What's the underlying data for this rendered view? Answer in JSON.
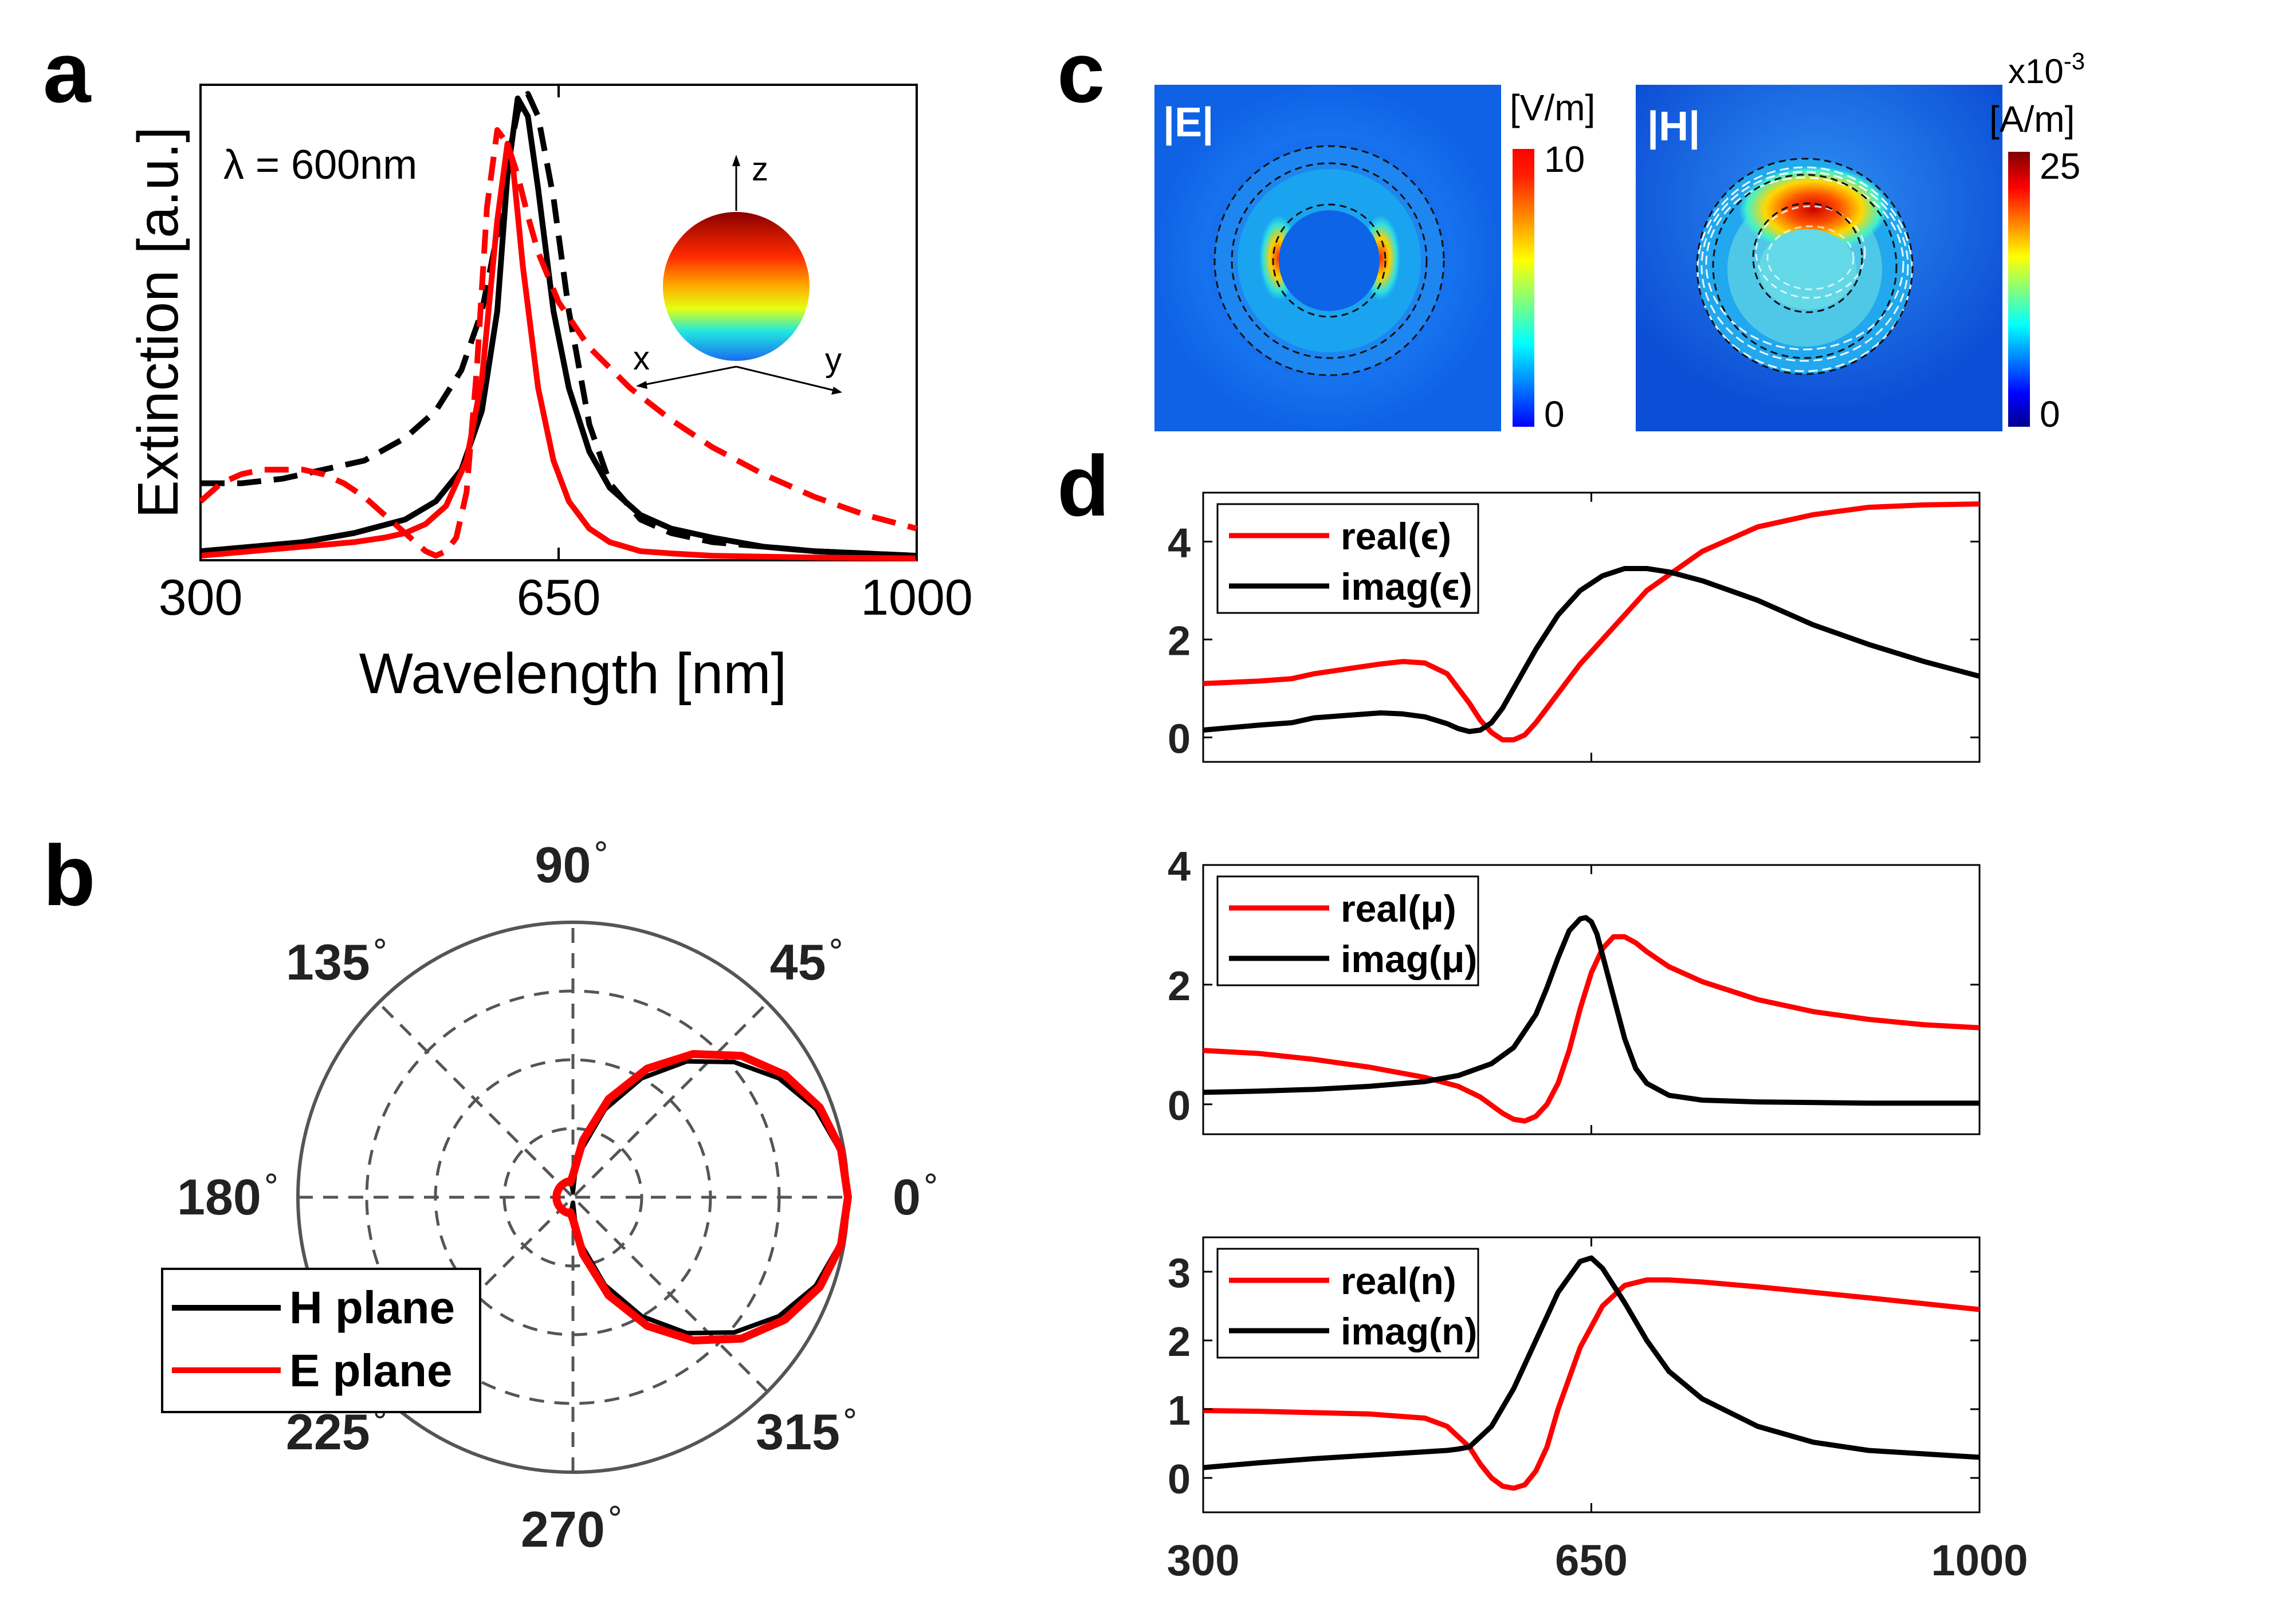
{
  "panel_labels": [
    "a",
    "b",
    "c",
    "d"
  ],
  "colors": {
    "red": "#ff0000",
    "black": "#000000",
    "gray": "#555555"
  },
  "chart_data": [
    {
      "id": "a",
      "type": "line",
      "xlabel": "Wavelength [nm]",
      "ylabel": "Extinction [a.u.]",
      "xlim": [
        300,
        1000
      ],
      "ylim": [
        0,
        1.05
      ],
      "xticks": [
        "300",
        "650",
        "1000"
      ],
      "annotation": "λ = 600nm",
      "inset_axes": [
        "z",
        "x",
        "y"
      ],
      "series": [
        {
          "color": "#000000",
          "dash": "dashed",
          "x": [
            300,
            340,
            380,
            420,
            460,
            500,
            530,
            555,
            575,
            590,
            600,
            610,
            620,
            630,
            645,
            660,
            680,
            700,
            730,
            760,
            800,
            850,
            900,
            950,
            1000
          ],
          "y": [
            0.17,
            0.17,
            0.18,
            0.2,
            0.22,
            0.27,
            0.33,
            0.42,
            0.55,
            0.72,
            0.88,
            0.99,
            1.03,
            0.98,
            0.8,
            0.55,
            0.3,
            0.17,
            0.09,
            0.06,
            0.04,
            0.03,
            0.02,
            0.015,
            0.01
          ]
        },
        {
          "color": "#000000",
          "dash": "solid",
          "x": [
            300,
            350,
            400,
            450,
            500,
            530,
            555,
            575,
            590,
            600,
            610,
            620,
            630,
            645,
            660,
            680,
            700,
            730,
            760,
            800,
            850,
            900,
            1000
          ],
          "y": [
            0.02,
            0.03,
            0.04,
            0.06,
            0.09,
            0.13,
            0.2,
            0.33,
            0.55,
            0.85,
            1.02,
            0.98,
            0.82,
            0.55,
            0.38,
            0.24,
            0.16,
            0.1,
            0.07,
            0.05,
            0.03,
            0.02,
            0.01
          ]
        },
        {
          "color": "#ff0000",
          "dash": "dashed",
          "x": [
            300,
            320,
            340,
            360,
            380,
            400,
            420,
            440,
            460,
            480,
            500,
            510,
            520,
            530,
            540,
            550,
            560,
            570,
            580,
            590,
            600,
            610,
            620,
            630,
            650,
            680,
            720,
            760,
            800,
            850,
            900,
            950,
            1000
          ],
          "y": [
            0.13,
            0.17,
            0.19,
            0.2,
            0.2,
            0.2,
            0.19,
            0.17,
            0.14,
            0.1,
            0.06,
            0.04,
            0.02,
            0.01,
            0.02,
            0.05,
            0.15,
            0.42,
            0.78,
            0.95,
            0.92,
            0.85,
            0.76,
            0.68,
            0.57,
            0.47,
            0.38,
            0.31,
            0.25,
            0.19,
            0.14,
            0.1,
            0.07
          ]
        },
        {
          "color": "#ff0000",
          "dash": "solid",
          "x": [
            300,
            350,
            400,
            450,
            480,
            500,
            520,
            540,
            560,
            575,
            590,
            600,
            605,
            615,
            630,
            645,
            660,
            680,
            700,
            730,
            760,
            800,
            850,
            900,
            1000
          ],
          "y": [
            0.01,
            0.02,
            0.03,
            0.04,
            0.05,
            0.06,
            0.08,
            0.12,
            0.22,
            0.4,
            0.75,
            0.92,
            0.88,
            0.65,
            0.38,
            0.22,
            0.13,
            0.07,
            0.04,
            0.02,
            0.015,
            0.01,
            0.008,
            0.006,
            0.004
          ]
        }
      ]
    },
    {
      "id": "b",
      "type": "polar",
      "angle_labels": [
        "0",
        "45",
        "90",
        "135",
        "180",
        "225",
        "270",
        "315"
      ],
      "degree_symbol": "∘",
      "legend": [
        "H plane",
        "E plane"
      ],
      "series": [
        {
          "name": "H plane",
          "color": "#000000",
          "theta": [
            0,
            10,
            20,
            30,
            40,
            50,
            60,
            70,
            80,
            85,
            90,
            95,
            100,
            110,
            120,
            130,
            140,
            150,
            160,
            170,
            180,
            190,
            200,
            210,
            220,
            230,
            240,
            250,
            260,
            265,
            270,
            275,
            280,
            290,
            300,
            310,
            320,
            330,
            340,
            350,
            360
          ],
          "r": [
            1,
            0.985,
            0.94,
            0.865,
            0.765,
            0.645,
            0.5,
            0.34,
            0.175,
            0.09,
            0.02,
            0.04,
            0.05,
            0.06,
            0.06,
            0.06,
            0.06,
            0.06,
            0.06,
            0.06,
            0.06,
            0.06,
            0.06,
            0.06,
            0.06,
            0.06,
            0.06,
            0.06,
            0.05,
            0.04,
            0.02,
            0.09,
            0.175,
            0.34,
            0.5,
            0.645,
            0.765,
            0.865,
            0.94,
            0.985,
            1
          ]
        },
        {
          "name": "E plane",
          "color": "#ff0000",
          "theta": [
            0,
            10,
            20,
            30,
            40,
            50,
            60,
            70,
            80,
            90,
            100,
            110,
            120,
            130,
            140,
            150,
            160,
            170,
            180,
            190,
            200,
            210,
            220,
            230,
            240,
            250,
            260,
            270,
            280,
            290,
            300,
            310,
            320,
            330,
            340,
            350,
            360
          ],
          "r": [
            1,
            0.99,
            0.955,
            0.89,
            0.8,
            0.68,
            0.54,
            0.38,
            0.21,
            0.08,
            0.055,
            0.06,
            0.06,
            0.06,
            0.06,
            0.06,
            0.06,
            0.06,
            0.06,
            0.06,
            0.06,
            0.06,
            0.06,
            0.06,
            0.06,
            0.06,
            0.055,
            0.08,
            0.21,
            0.38,
            0.54,
            0.68,
            0.8,
            0.89,
            0.955,
            0.99,
            1
          ]
        }
      ]
    },
    {
      "id": "c",
      "type": "heatmap",
      "maps": [
        {
          "label": "|E|",
          "unit": "[V/m]",
          "cb_max": "10",
          "cb_min": "0"
        },
        {
          "label": "|H|",
          "unit_lines": [
            "x10",
            "-3",
            "[A/m]"
          ],
          "cb_max": "25",
          "cb_min": "0"
        }
      ]
    },
    {
      "id": "d",
      "type": "line",
      "xlim": [
        300,
        1000
      ],
      "xticks": [
        "300",
        "650",
        "1000"
      ],
      "subplots": [
        {
          "ylim": [
            -0.5,
            5
          ],
          "yticks": [
            "0",
            "2",
            "4"
          ],
          "legend": [
            "real(ϵ)",
            "imag(ϵ)"
          ],
          "series": [
            {
              "name": "real(ϵ)",
              "color": "#ff0000",
              "x": [
                300,
                350,
                380,
                400,
                430,
                460,
                480,
                500,
                520,
                540,
                550,
                560,
                570,
                580,
                590,
                600,
                610,
                620,
                640,
                660,
                680,
                700,
                750,
                800,
                850,
                900,
                950,
                1000
              ],
              "y": [
                1.1,
                1.15,
                1.2,
                1.3,
                1.4,
                1.5,
                1.55,
                1.52,
                1.3,
                0.7,
                0.35,
                0.1,
                -0.05,
                -0.05,
                0.05,
                0.3,
                0.6,
                0.9,
                1.5,
                2.0,
                2.5,
                3.0,
                3.8,
                4.3,
                4.55,
                4.7,
                4.75,
                4.77
              ]
            },
            {
              "name": "imag(ϵ)",
              "color": "#000000",
              "x": [
                300,
                350,
                380,
                400,
                430,
                460,
                480,
                500,
                520,
                530,
                540,
                550,
                560,
                570,
                580,
                600,
                620,
                640,
                660,
                680,
                700,
                720,
                750,
                800,
                850,
                900,
                950,
                1000
              ],
              "y": [
                0.15,
                0.25,
                0.3,
                0.4,
                0.45,
                0.5,
                0.48,
                0.42,
                0.28,
                0.18,
                0.12,
                0.15,
                0.3,
                0.6,
                1.0,
                1.8,
                2.5,
                3.0,
                3.3,
                3.45,
                3.45,
                3.38,
                3.2,
                2.8,
                2.3,
                1.9,
                1.55,
                1.25
              ]
            }
          ]
        },
        {
          "ylim": [
            -0.5,
            4
          ],
          "yticks": [
            "0",
            "2",
            "4"
          ],
          "legend": [
            "real(μ)",
            "imag(μ)"
          ],
          "series": [
            {
              "name": "real(μ)",
              "color": "#ff0000",
              "x": [
                300,
                350,
                400,
                450,
                500,
                530,
                550,
                570,
                580,
                590,
                600,
                610,
                620,
                630,
                640,
                650,
                660,
                670,
                680,
                690,
                700,
                720,
                750,
                800,
                850,
                900,
                950,
                1000
              ],
              "y": [
                0.9,
                0.85,
                0.75,
                0.62,
                0.45,
                0.3,
                0.12,
                -0.15,
                -0.25,
                -0.28,
                -0.2,
                0.0,
                0.35,
                0.9,
                1.6,
                2.2,
                2.6,
                2.8,
                2.8,
                2.7,
                2.55,
                2.3,
                2.05,
                1.75,
                1.55,
                1.42,
                1.33,
                1.28
              ]
            },
            {
              "name": "imag(μ)",
              "color": "#000000",
              "x": [
                300,
                350,
                400,
                450,
                500,
                530,
                560,
                580,
                600,
                610,
                620,
                630,
                640,
                645,
                650,
                655,
                660,
                670,
                680,
                690,
                700,
                720,
                750,
                800,
                850,
                900,
                1000
              ],
              "y": [
                0.2,
                0.22,
                0.25,
                0.3,
                0.38,
                0.48,
                0.68,
                0.95,
                1.5,
                1.95,
                2.45,
                2.9,
                3.1,
                3.12,
                3.05,
                2.85,
                2.5,
                1.8,
                1.1,
                0.6,
                0.35,
                0.15,
                0.07,
                0.04,
                0.03,
                0.02,
                0.02
              ]
            }
          ]
        },
        {
          "ylim": [
            -0.5,
            3.5
          ],
          "yticks": [
            "0",
            "1",
            "2",
            "3"
          ],
          "legend": [
            "real(n)",
            "imag(n)"
          ],
          "series": [
            {
              "name": "real(n)",
              "color": "#ff0000",
              "x": [
                300,
                350,
                400,
                450,
                500,
                520,
                540,
                550,
                560,
                570,
                580,
                590,
                600,
                610,
                620,
                640,
                660,
                680,
                700,
                720,
                750,
                800,
                850,
                900,
                1000
              ],
              "y": [
                0.98,
                0.97,
                0.95,
                0.93,
                0.87,
                0.75,
                0.45,
                0.2,
                0.0,
                -0.12,
                -0.15,
                -0.1,
                0.1,
                0.45,
                1.0,
                1.9,
                2.5,
                2.8,
                2.88,
                2.88,
                2.85,
                2.78,
                2.7,
                2.62,
                2.45
              ]
            },
            {
              "name": "imag(n)",
              "color": "#000000",
              "x": [
                300,
                350,
                400,
                450,
                500,
                520,
                530,
                540,
                560,
                580,
                600,
                620,
                640,
                650,
                660,
                680,
                700,
                720,
                750,
                800,
                850,
                900,
                1000
              ],
              "y": [
                0.15,
                0.22,
                0.28,
                0.33,
                0.38,
                0.4,
                0.42,
                0.45,
                0.75,
                1.3,
                2.0,
                2.7,
                3.15,
                3.2,
                3.05,
                2.55,
                2.0,
                1.55,
                1.15,
                0.75,
                0.52,
                0.4,
                0.3
              ]
            }
          ]
        }
      ]
    }
  ]
}
